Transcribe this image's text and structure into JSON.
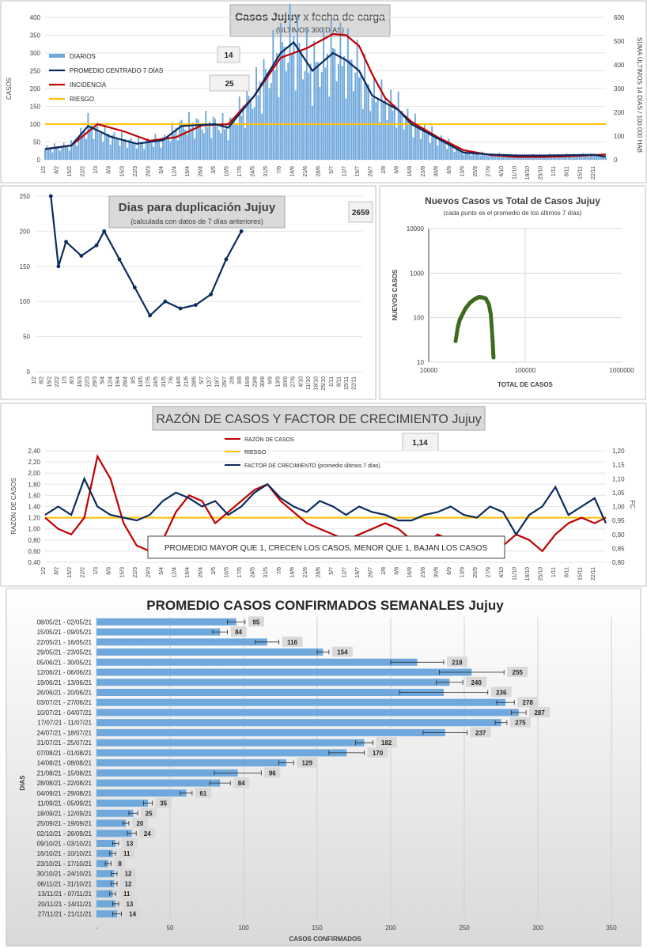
{
  "colors": {
    "diarios": "#6fa8dc",
    "promedio": "#0b2b5e",
    "incidencia": "#c00000",
    "riesgo": "#ffc000",
    "duplicacion": "#0b2b5e",
    "nuevos": "#3e6b1f",
    "razon": "#c00000",
    "factor": "#0b2b5e",
    "bars": "#6fa8dc"
  },
  "casos_chart": {
    "title_bold": "Casos Jujuy",
    "title_rest": " x fecha de carga",
    "subtitle": "(ÚLTIMOS 300 DÍAS)",
    "ylabel_left": "CASOS",
    "ylabel_right": "SUMA ÚLTIMOS 14 DÍAS / 100.000 HAB",
    "badge_14": "14",
    "badge_25": "25",
    "legend": [
      "DIARIOS",
      "PROMEDIO CENTRADO 7 DÍAS",
      "INCIDENCIA",
      "RIESGO"
    ],
    "left_ticks": [
      "0",
      "50",
      "100",
      "150",
      "200",
      "250",
      "300",
      "350",
      "400"
    ],
    "right_ticks": [
      "0",
      "100",
      "200",
      "300",
      "400",
      "500",
      "600"
    ],
    "x_ticks": [
      "1/2",
      "8/2",
      "15/2",
      "22/2",
      "1/3",
      "8/3",
      "15/3",
      "22/3",
      "29/3",
      "5/4",
      "12/4",
      "19/4",
      "26/4",
      "3/5",
      "10/5",
      "17/5",
      "24/5",
      "31/5",
      "7/6",
      "14/6",
      "21/6",
      "28/6",
      "5/7",
      "12/7",
      "19/7",
      "26/7",
      "2/8",
      "9/8",
      "16/8",
      "23/8",
      "30/8",
      "6/9",
      "13/9",
      "20/9",
      "27/9",
      "4/10",
      "11/10",
      "18/10",
      "25/10",
      "1/11",
      "8/11",
      "15/11",
      "22/11"
    ]
  },
  "dup_chart": {
    "title": "Dias para duplicación Jujuy",
    "subtitle": "(calculada con datos de 7 días anteriores)",
    "badge": "2659",
    "y_ticks": [
      "0",
      "50",
      "100",
      "150",
      "200",
      "250"
    ],
    "x_ticks": [
      "1/2",
      "8/2",
      "15/2",
      "22/2",
      "1/3",
      "8/3",
      "15/3",
      "22/3",
      "29/3",
      "5/4",
      "12/4",
      "19/4",
      "26/4",
      "3/5",
      "10/5",
      "17/5",
      "24/5",
      "31/5",
      "7/6",
      "14/6",
      "21/6",
      "28/6",
      "5/7",
      "12/7",
      "19/7",
      "26/7",
      "2/8",
      "9/8",
      "16/8",
      "23/8",
      "30/8",
      "6/9",
      "13/9",
      "20/9",
      "27/9",
      "4/10",
      "11/10",
      "18/10",
      "25/10",
      "1/11",
      "8/11",
      "15/11",
      "22/11"
    ]
  },
  "nuevos_chart": {
    "title": "Nuevos Casos vs Total de Casos Jujuy",
    "subtitle": "(cada punto es el promedio de los últimos 7 días)",
    "ylabel": "NUEVOS CASOS",
    "xlabel": "TOTAL DE CASOS",
    "y_ticks": [
      "10",
      "100",
      "1000",
      "10000"
    ],
    "x_ticks": [
      "10000",
      "100000",
      "1000000"
    ]
  },
  "razon_chart": {
    "title": "RAZÓN DE CASOS Y FACTOR DE CRECIMIENTO Jujuy",
    "badge": "1,14",
    "ylabel_left": "RAZÓN DE CASOS",
    "ylabel_right": "FC",
    "legend": [
      "RAZÓN DE CASOS",
      "RIESGO",
      "FACTOR DE CRECIMIENTO (promedio últimos 7 días)"
    ],
    "note": "PROMEDIO MAYOR QUE 1, CRECEN LOS CASOS, MENOR QUE 1, BAJAN LOS CASOS",
    "left_ticks": [
      "0,40",
      "0,60",
      "0,80",
      "1,00",
      "1,20",
      "1,40",
      "1,60",
      "1,80",
      "2,00",
      "2,20",
      "2,40"
    ],
    "right_ticks": [
      "0,80",
      "0,85",
      "0,90",
      "0,95",
      "1,00",
      "1,05",
      "1,10",
      "1,15",
      "1,20"
    ],
    "x_ticks": [
      "1/2",
      "8/2",
      "15/2",
      "22/2",
      "1/3",
      "8/3",
      "15/3",
      "22/3",
      "29/3",
      "5/4",
      "12/4",
      "19/4",
      "26/4",
      "3/5",
      "10/5",
      "17/5",
      "24/5",
      "31/5",
      "7/6",
      "14/6",
      "21/6",
      "28/6",
      "5/7",
      "12/7",
      "19/7",
      "26/7",
      "2/8",
      "9/8",
      "16/8",
      "23/8",
      "30/8",
      "6/9",
      "13/9",
      "20/9",
      "27/9",
      "4/10",
      "11/10",
      "18/10",
      "25/10",
      "1/11",
      "8/11",
      "15/11",
      "22/11"
    ]
  },
  "chart_data": [
    {
      "type": "bar",
      "title": "Casos Jujuy x fecha de carga",
      "subtitle": "(ÚLTIMOS 300 DÍAS)",
      "ylabel": "CASOS",
      "ylim": [
        0,
        400
      ],
      "y2label": "SUMA ÚLTIMOS 14 DÍAS / 100.000 HAB",
      "y2lim": [
        0,
        600
      ],
      "x_range": [
        "1/2",
        "28/11"
      ],
      "legend_position": "top-left",
      "riesgo_level": 100,
      "series": [
        {
          "name": "PROMEDIO CENTRADO 7 DÍAS",
          "x": [
            "1/2",
            "15/2",
            "24/2",
            "8/3",
            "22/3",
            "5/4",
            "15/4",
            "3/5",
            "10/5",
            "24/5",
            "7/6",
            "14/6",
            "24/6",
            "5/7",
            "12/7",
            "19/7",
            "26/7",
            "9/8",
            "16/8",
            "23/8",
            "30/8",
            "6/9",
            "13/9",
            "27/9",
            "11/10",
            "25/10",
            "8/11",
            "22/11",
            "28/11"
          ],
          "values": [
            30,
            40,
            95,
            65,
            45,
            55,
            95,
            100,
            90,
            180,
            300,
            330,
            250,
            300,
            280,
            250,
            180,
            140,
            100,
            80,
            60,
            40,
            20,
            15,
            12,
            12,
            13,
            14,
            8
          ]
        },
        {
          "name": "INCIDENCIA",
          "x": [
            "1/2",
            "15/2",
            "1/3",
            "15/3",
            "29/3",
            "12/4",
            "26/4",
            "10/5",
            "24/5",
            "7/6",
            "21/6",
            "5/7",
            "12/7",
            "19/7",
            "26/7",
            "2/8",
            "16/8",
            "30/8",
            "13/9",
            "27/9",
            "11/10",
            "25/10",
            "8/11",
            "22/11",
            "28/11"
          ],
          "values": [
            45,
            60,
            150,
            120,
            80,
            95,
            145,
            150,
            270,
            430,
            470,
            530,
            525,
            480,
            360,
            260,
            160,
            95,
            40,
            20,
            12,
            12,
            15,
            20,
            22
          ]
        }
      ]
    },
    {
      "type": "line",
      "title": "Dias para duplicación Jujuy",
      "subtitle": "(calculada con datos de 7 días anteriores)",
      "ylim": [
        0,
        250
      ],
      "series": [
        {
          "name": "",
          "x": [
            "15/2",
            "22/2",
            "1/3",
            "15/3",
            "29/3",
            "5/4",
            "19/4",
            "3/5",
            "17/5",
            "31/5",
            "14/6",
            "28/6",
            "12/7",
            "26/7",
            "9/8"
          ],
          "values": [
            250,
            150,
            185,
            165,
            180,
            200,
            160,
            120,
            80,
            100,
            90,
            95,
            110,
            160,
            200
          ]
        }
      ]
    },
    {
      "type": "scatter",
      "title": "Nuevos Casos vs Total de Casos Jujuy",
      "subtitle": "(cada punto es el promedio de los últimos 7 días)",
      "xlabel": "TOTAL DE CASOS",
      "ylabel": "NUEVOS CASOS",
      "xscale": "log",
      "yscale": "log",
      "xlim": [
        10000,
        1000000
      ],
      "ylim": [
        10,
        10000
      ],
      "x": [
        19000,
        20000,
        21000,
        22000,
        24000,
        27000,
        30000,
        33000,
        36000,
        39000,
        42000,
        44000,
        45000,
        46000,
        46500,
        47000
      ],
      "values": [
        30,
        60,
        90,
        110,
        160,
        220,
        260,
        290,
        285,
        270,
        200,
        120,
        60,
        30,
        18,
        12
      ]
    },
    {
      "type": "line",
      "title": "RAZÓN DE CASOS Y FACTOR DE CRECIMIENTO Jujuy",
      "ylabel": "RAZÓN DE CASOS",
      "ylim": [
        0.4,
        2.4
      ],
      "y2label": "FC",
      "y2lim": [
        0.8,
        1.2
      ],
      "riesgo_level": 1.2,
      "series": [
        {
          "name": "RAZÓN DE CASOS",
          "x": [
            "1/2",
            "8/2",
            "15/2",
            "22/2",
            "1/3",
            "8/3",
            "15/3",
            "22/3",
            "29/3",
            "5/4",
            "12/4",
            "19/4",
            "26/4",
            "3/5",
            "10/5",
            "17/5",
            "24/5",
            "31/5",
            "7/6",
            "14/6",
            "21/6",
            "28/6",
            "5/7",
            "12/7",
            "19/7",
            "26/7",
            "2/8",
            "9/8",
            "16/8",
            "23/8",
            "30/8",
            "6/9",
            "13/9",
            "20/9",
            "27/9",
            "4/10",
            "11/10",
            "18/10",
            "25/10",
            "1/11",
            "8/11",
            "15/11",
            "22/11",
            "28/11"
          ],
          "values": [
            1.2,
            1.0,
            0.9,
            1.2,
            2.3,
            1.9,
            1.1,
            0.7,
            0.6,
            0.8,
            1.3,
            1.6,
            1.5,
            1.1,
            1.3,
            1.5,
            1.7,
            1.8,
            1.5,
            1.3,
            1.1,
            1.0,
            0.9,
            0.8,
            0.9,
            1.0,
            1.1,
            1.0,
            0.8,
            0.7,
            0.9,
            0.8,
            0.6,
            0.5,
            0.5,
            0.7,
            0.9,
            0.8,
            0.6,
            0.9,
            1.1,
            1.2,
            1.1,
            1.2
          ]
        },
        {
          "name": "FACTOR DE CRECIMIENTO (promedio últimos 7 días)",
          "x": [
            "1/2",
            "8/2",
            "15/2",
            "22/2",
            "1/3",
            "8/3",
            "15/3",
            "22/3",
            "29/3",
            "5/4",
            "12/4",
            "19/4",
            "26/4",
            "3/5",
            "10/5",
            "17/5",
            "24/5",
            "31/5",
            "7/6",
            "14/6",
            "21/6",
            "28/6",
            "5/7",
            "12/7",
            "19/7",
            "26/7",
            "2/8",
            "9/8",
            "16/8",
            "23/8",
            "30/8",
            "6/9",
            "13/9",
            "20/9",
            "27/9",
            "4/10",
            "11/10",
            "18/10",
            "25/10",
            "1/11",
            "8/11",
            "15/11",
            "22/11",
            "28/11"
          ],
          "values": [
            0.97,
            1.0,
            0.97,
            1.1,
            1.0,
            0.97,
            0.96,
            0.95,
            0.97,
            1.02,
            1.05,
            1.03,
            1.0,
            1.02,
            0.97,
            1.0,
            1.05,
            1.08,
            1.03,
            1.0,
            0.98,
            1.02,
            1.0,
            0.97,
            1.0,
            0.98,
            0.97,
            0.95,
            0.95,
            0.97,
            0.98,
            1.0,
            0.97,
            0.96,
            1.0,
            0.98,
            0.9,
            0.97,
            1.0,
            1.07,
            0.97,
            1.0,
            1.03,
            0.94
          ]
        }
      ]
    },
    {
      "type": "bar",
      "orientation": "horizontal",
      "title": "PROMEDIO CASOS CONFIRMADOS SEMANALES Jujuy",
      "xlabel": "CASOS CONFIRMADOS",
      "ylabel": "DIAS",
      "xlim": [
        0,
        350
      ],
      "x_ticks": [
        "-",
        "50",
        "100",
        "150",
        "200",
        "250",
        "300",
        "350"
      ],
      "categories": [
        "08/05/21 - 02/05/21",
        "15/05/21 - 09/05/21",
        "22/05/21 - 16/05/21",
        "29/05/21 - 23/05/21",
        "05/06/21 - 30/05/21",
        "12/06/21 - 06/06/21",
        "19/06/21 - 13/06/21",
        "26/06/21 - 20/06/21",
        "03/07/21 - 27/06/21",
        "10/07/21 - 04/07/21",
        "17/07/21 - 11/07/21",
        "24/07/21 - 18/07/21",
        "31/07/21 - 25/07/21",
        "07/08/21 - 01/08/21",
        "14/08/21 - 08/08/21",
        "21/08/21 - 15/08/21",
        "28/08/21 - 22/08/21",
        "04/09/21 - 29/08/21",
        "11/09/21 - 05/09/21",
        "18/09/21 - 12/09/21",
        "25/09/21 - 19/09/21",
        "02/10/21 - 26/09/21",
        "09/10/21 - 03/10/21",
        "16/10/21 - 10/10/21",
        "23/10/21 - 17/10/21",
        "30/10/21 - 24/10/21",
        "06/11/21 - 31/10/21",
        "13/11/21 - 07/11/21",
        "20/11/21 - 14/11/21",
        "27/11/21 - 21/11/21"
      ],
      "values": [
        95,
        84,
        116,
        154,
        218,
        255,
        240,
        236,
        278,
        287,
        275,
        237,
        182,
        170,
        129,
        96,
        84,
        61,
        35,
        25,
        20,
        24,
        13,
        11,
        8,
        12,
        12,
        11,
        13,
        14
      ],
      "labels": [
        "95",
        "84",
        "116",
        "154",
        "218",
        "255",
        "240",
        "236",
        "278",
        "287",
        "275",
        "237",
        "182",
        "170",
        "129",
        "96",
        "84",
        "61",
        "35",
        "25",
        "20",
        "24",
        "13",
        "11",
        "8",
        "12",
        "12",
        "11",
        "13",
        "14"
      ],
      "errors": [
        6,
        5,
        8,
        4,
        18,
        22,
        9,
        30,
        6,
        5,
        4,
        15,
        6,
        12,
        5,
        16,
        7,
        4,
        3,
        3,
        2,
        3,
        2,
        2,
        2,
        2,
        2,
        2,
        2,
        3
      ]
    }
  ]
}
